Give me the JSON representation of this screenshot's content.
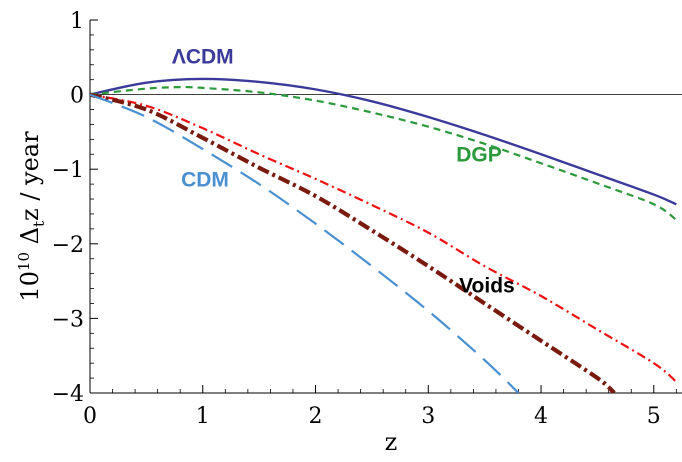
{
  "chart_data": {
    "type": "line",
    "xlabel": "z",
    "ylabel": "10^10 Δ_t z / year",
    "xlim": [
      0,
      5.25
    ],
    "ylim": [
      -4,
      1
    ],
    "x_ticks": [
      "0",
      "1",
      "2",
      "3",
      "4",
      "5"
    ],
    "y_ticks": [
      "1",
      "0",
      "−1",
      "−2",
      "−3",
      "−4"
    ],
    "grid": false,
    "zero_line": true,
    "series": [
      {
        "name": "ΛCDM",
        "color": "#3a3a9a",
        "dash": "solid",
        "x": [
          0,
          0.5,
          1.0,
          1.5,
          2.0,
          2.5,
          3.0,
          3.5,
          4.0,
          4.5,
          5.0,
          5.2
        ],
        "y": [
          0,
          0.16,
          0.21,
          0.17,
          0.07,
          -0.09,
          -0.3,
          -0.54,
          -0.8,
          -1.07,
          -1.34,
          -1.47
        ]
      },
      {
        "name": "DGP",
        "color": "#2a9a3a",
        "dash": "dashed",
        "x": [
          0,
          0.5,
          0.8,
          1.0,
          1.5,
          2.0,
          2.5,
          3.0,
          3.5,
          4.0,
          4.5,
          5.0,
          5.2
        ],
        "y": [
          0,
          0.08,
          0.1,
          0.09,
          0.03,
          -0.08,
          -0.24,
          -0.43,
          -0.66,
          -0.92,
          -1.19,
          -1.47,
          -1.68
        ]
      },
      {
        "name": "",
        "color": "#ee1111",
        "dash": "dotdash",
        "x": [
          0,
          0.5,
          1.0,
          1.5,
          2.0,
          2.5,
          3.0,
          3.5,
          4.0,
          4.5,
          5.0,
          5.2
        ],
        "y": [
          0,
          -0.15,
          -0.45,
          -0.8,
          -1.13,
          -1.48,
          -1.85,
          -2.3,
          -2.7,
          -3.15,
          -3.6,
          -3.85
        ]
      },
      {
        "name": "Voids",
        "color": "#7a1a0e",
        "dash": "thickdotdash",
        "x": [
          0,
          0.5,
          1.0,
          1.5,
          2.0,
          2.5,
          3.0,
          3.5,
          4.0,
          4.5,
          4.65
        ],
        "y": [
          0,
          -0.2,
          -0.58,
          -0.98,
          -1.36,
          -1.82,
          -2.3,
          -2.8,
          -3.3,
          -3.8,
          -4.0
        ]
      },
      {
        "name": "CDM",
        "color": "#4a90d0",
        "dash": "longdash",
        "x": [
          0,
          0.5,
          1.0,
          1.5,
          2.0,
          2.5,
          3.0,
          3.5,
          3.8
        ],
        "y": [
          0,
          -0.3,
          -0.73,
          -1.2,
          -1.73,
          -2.3,
          -2.9,
          -3.56,
          -4.0
        ]
      }
    ],
    "labels": [
      {
        "text": "ΛCDM",
        "x": 1.0,
        "y": 0.42,
        "color": "#3a3a9a"
      },
      {
        "text": "DGP",
        "x": 3.45,
        "y": -0.9,
        "color": "#2a9a3a"
      },
      {
        "text": "CDM",
        "x": 1.02,
        "y": -1.23,
        "color": "#4a90d0"
      },
      {
        "text": "Voids",
        "x": 3.52,
        "y": -2.65,
        "color": "#000000"
      }
    ]
  }
}
